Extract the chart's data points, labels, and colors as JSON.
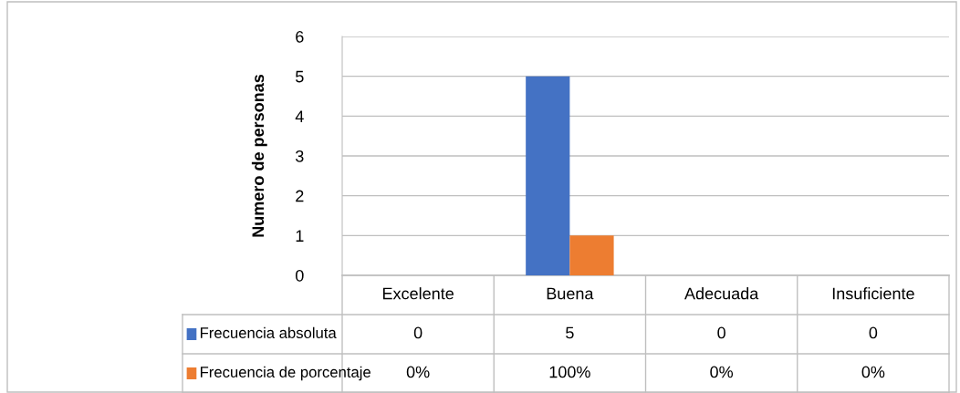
{
  "chart_data": {
    "type": "bar",
    "ylabel": "Numero de personas",
    "categories": [
      "Excelente",
      "Buena",
      "Adecuada",
      "Insuficiente"
    ],
    "series": [
      {
        "name": "Frecuencia absoluta",
        "color": "#4472c4",
        "values": [
          0,
          5,
          0,
          0
        ],
        "value_labels": [
          "0",
          "5",
          "0",
          "0"
        ]
      },
      {
        "name": "Frecuencia de porcentaje",
        "color": "#ed7d31",
        "values": [
          0,
          1,
          0,
          0
        ],
        "value_labels": [
          "0%",
          "100%",
          "0%",
          "0%"
        ]
      }
    ],
    "ylim": [
      0,
      6
    ],
    "yticks": [
      0,
      1,
      2,
      3,
      4,
      5,
      6
    ],
    "grid": "y",
    "legend": "bottom"
  }
}
